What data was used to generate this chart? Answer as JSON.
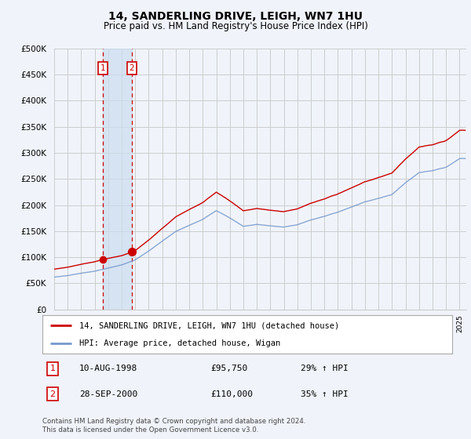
{
  "title": "14, SANDERLING DRIVE, LEIGH, WN7 1HU",
  "subtitle": "Price paid vs. HM Land Registry's House Price Index (HPI)",
  "red_label": "14, SANDERLING DRIVE, LEIGH, WN7 1HU (detached house)",
  "blue_label": "HPI: Average price, detached house, Wigan",
  "sale1_label": "1",
  "sale1_date": "10-AUG-1998",
  "sale1_price": "£95,750",
  "sale1_hpi": "29% ↑ HPI",
  "sale2_label": "2",
  "sale2_date": "28-SEP-2000",
  "sale2_price": "£110,000",
  "sale2_hpi": "35% ↑ HPI",
  "footer": "Contains HM Land Registry data © Crown copyright and database right 2024.\nThis data is licensed under the Open Government Licence v3.0.",
  "ylim": [
    0,
    500000
  ],
  "yticks": [
    0,
    50000,
    100000,
    150000,
    200000,
    250000,
    300000,
    350000,
    400000,
    450000,
    500000
  ],
  "sale1_x": 1998.6,
  "sale2_x": 2000.75,
  "sale1_price_val": 95750,
  "sale2_price_val": 110000,
  "bg_color": "#f0f4fa",
  "grid_color": "#cccccc",
  "red_color": "#cc0000",
  "blue_color": "#7799cc",
  "vline_color": "#cc0000",
  "shade_color": "#ccddf0",
  "box_color": "#cc0000",
  "xlim_left": 1995.0,
  "xlim_right": 2025.5
}
